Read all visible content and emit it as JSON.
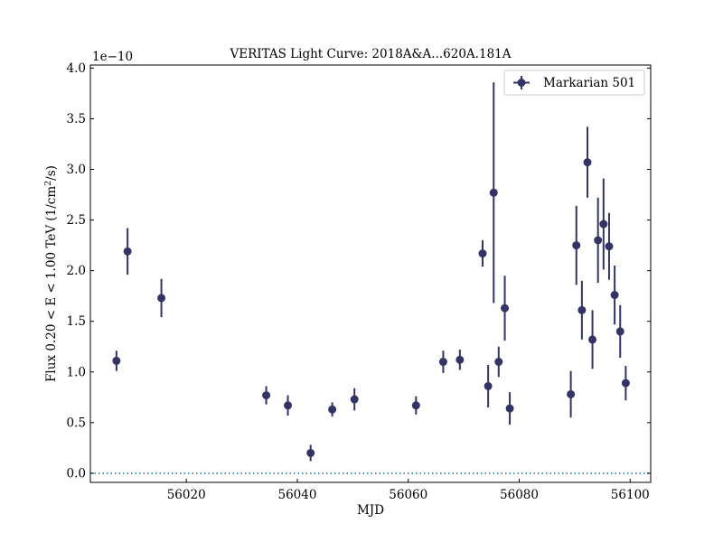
{
  "chart_data": {
    "type": "scatter",
    "title": "VERITAS Light Curve: 2018A&A...620A.181A",
    "xlabel": "MJD",
    "ylabel_prefix": "Flux 0.20 < E < 1.00 TeV (1/cm",
    "ylabel_sup": "2",
    "ylabel_suffix": "/s)",
    "y_offset_text": "1e−10",
    "xlim": [
      56002.7,
      56103.7
    ],
    "ylim": [
      -0.09,
      4.03
    ],
    "y_scale_multiplier": 1e-10,
    "x_ticks": [
      56020,
      56040,
      56060,
      56080,
      56100
    ],
    "x_tick_labels": [
      "56020",
      "56040",
      "56060",
      "56080",
      "56100"
    ],
    "y_ticks": [
      0.0,
      0.5,
      1.0,
      1.5,
      2.0,
      2.5,
      3.0,
      3.5,
      4.0
    ],
    "y_tick_labels": [
      "0.0",
      "0.5",
      "1.0",
      "1.5",
      "2.0",
      "2.5",
      "3.0",
      "3.5",
      "4.0"
    ],
    "grid": false,
    "legend_position": "top-right",
    "baseline": 0.0,
    "colors": {
      "series": "#333366",
      "baseline": "#1f77b4"
    },
    "series": [
      {
        "name": "Markarian 501",
        "points": [
          {
            "x": 56007.4,
            "y": 1.11,
            "yerr": 0.1
          },
          {
            "x": 56009.4,
            "y": 2.19,
            "yerr": 0.23
          },
          {
            "x": 56015.5,
            "y": 1.73,
            "yerr": 0.19
          },
          {
            "x": 56034.4,
            "y": 0.77,
            "yerr": 0.09
          },
          {
            "x": 56038.3,
            "y": 0.67,
            "yerr": 0.1
          },
          {
            "x": 56042.4,
            "y": 0.2,
            "yerr": 0.08
          },
          {
            "x": 56046.3,
            "y": 0.63,
            "yerr": 0.07
          },
          {
            "x": 56050.3,
            "y": 0.73,
            "yerr": 0.11
          },
          {
            "x": 56061.4,
            "y": 0.67,
            "yerr": 0.09
          },
          {
            "x": 56066.3,
            "y": 1.1,
            "yerr": 0.11
          },
          {
            "x": 56069.3,
            "y": 1.12,
            "yerr": 0.1
          },
          {
            "x": 56073.4,
            "y": 2.17,
            "yerr": 0.13
          },
          {
            "x": 56074.4,
            "y": 0.86,
            "yerr": 0.21
          },
          {
            "x": 56075.4,
            "y": 2.77,
            "yerr": 1.09
          },
          {
            "x": 56076.3,
            "y": 1.1,
            "yerr": 0.15
          },
          {
            "x": 56077.4,
            "y": 1.63,
            "yerr": 0.32
          },
          {
            "x": 56078.3,
            "y": 0.64,
            "yerr": 0.16
          },
          {
            "x": 56089.3,
            "y": 0.78,
            "yerr": 0.23
          },
          {
            "x": 56090.3,
            "y": 2.25,
            "yerr": 0.39
          },
          {
            "x": 56091.3,
            "y": 1.61,
            "yerr": 0.29
          },
          {
            "x": 56092.3,
            "y": 3.07,
            "yerr": 0.35
          },
          {
            "x": 56093.2,
            "y": 1.32,
            "yerr": 0.29
          },
          {
            "x": 56094.2,
            "y": 2.3,
            "yerr": 0.42
          },
          {
            "x": 56095.2,
            "y": 2.46,
            "yerr": 0.45
          },
          {
            "x": 56096.2,
            "y": 2.24,
            "yerr": 0.33
          },
          {
            "x": 56097.2,
            "y": 1.76,
            "yerr": 0.29
          },
          {
            "x": 56098.2,
            "y": 1.4,
            "yerr": 0.26
          },
          {
            "x": 56099.2,
            "y": 0.89,
            "yerr": 0.17
          }
        ]
      }
    ]
  }
}
